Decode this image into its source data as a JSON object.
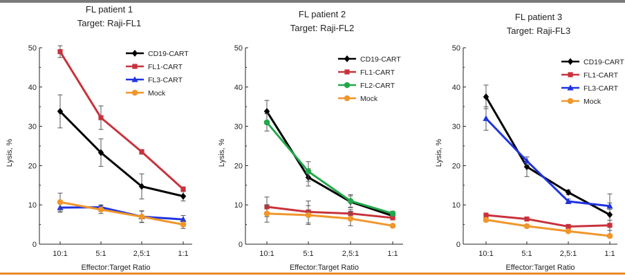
{
  "chart_data": [
    {
      "type": "line",
      "title": "FL patient 1",
      "subtitle": "Target: Raji-FL1",
      "xlabel": "Effector:Target Ratio",
      "ylabel": "Lysis, %",
      "categories": [
        "10:1",
        "5:1",
        "2,5:1",
        "1:1"
      ],
      "ylim": [
        0,
        50
      ],
      "yticks": [
        0,
        10,
        20,
        30,
        40,
        50
      ],
      "legend_position": "top-right",
      "series": [
        {
          "name": "CD19-CART",
          "color": "#000000",
          "marker": "diamond",
          "values": [
            33.8,
            23.3,
            14.7,
            12.2
          ],
          "errors": [
            4.2,
            3.5,
            3.2,
            1.2
          ]
        },
        {
          "name": "FL1-CART",
          "color": "#c8323c",
          "marker": "square",
          "values": [
            49.0,
            32.2,
            23.5,
            14.0
          ],
          "errors": [
            1.5,
            3.0,
            0.6,
            0.6
          ]
        },
        {
          "name": "FL3-CART",
          "color": "#1f33e0",
          "marker": "triangle",
          "values": [
            9.3,
            9.4,
            7.0,
            6.3
          ],
          "errors": [
            1.2,
            0.6,
            1.5,
            1.0
          ]
        },
        {
          "name": "Mock",
          "color": "#f0962a",
          "marker": "circle",
          "values": [
            10.7,
            8.8,
            7.0,
            5.0
          ],
          "errors": [
            2.3,
            1.0,
            1.4,
            1.0
          ]
        }
      ]
    },
    {
      "type": "line",
      "title": "FL patient 2",
      "subtitle": "Target: Raji-FL2",
      "xlabel": "Effector:Target Ratio",
      "ylabel": "Lysis, %",
      "categories": [
        "10:1",
        "5:1",
        "2,5:1",
        "1:1"
      ],
      "ylim": [
        0,
        50
      ],
      "yticks": [
        0,
        10,
        20,
        30,
        40,
        50
      ],
      "legend_position": "top-right",
      "series": [
        {
          "name": "CD19-CART",
          "color": "#000000",
          "marker": "diamond",
          "values": [
            33.8,
            17.0,
            10.8,
            7.2
          ],
          "errors": [
            2.8,
            2.2,
            1.5,
            0.6
          ]
        },
        {
          "name": "FL1-CART",
          "color": "#c8323c",
          "marker": "square",
          "values": [
            9.5,
            8.2,
            7.8,
            6.7
          ],
          "errors": [
            2.5,
            2.8,
            1.0,
            0.5
          ]
        },
        {
          "name": "FL2-CART",
          "color": "#22a84a",
          "marker": "circle",
          "values": [
            31.0,
            18.5,
            11.0,
            7.8
          ],
          "errors": [
            2.2,
            2.5,
            1.6,
            0.6
          ]
        },
        {
          "name": "Mock",
          "color": "#f0962a",
          "marker": "circle",
          "values": [
            7.8,
            7.4,
            6.5,
            4.7
          ],
          "errors": [
            2.2,
            2.4,
            1.8,
            0.4
          ]
        }
      ]
    },
    {
      "type": "line",
      "title": "FL patient 3",
      "subtitle": "Target: Raji-FL3",
      "xlabel": "Effector:Target Ratio",
      "ylabel": "Lysis, %",
      "categories": [
        "10:1",
        "5:1",
        "2,5:1",
        "1:1"
      ],
      "ylim": [
        0,
        50
      ],
      "yticks": [
        0,
        10,
        20,
        30,
        40,
        50
      ],
      "legend_position": "top-right",
      "series": [
        {
          "name": "CD19-CART",
          "color": "#000000",
          "marker": "diamond",
          "values": [
            37.5,
            19.7,
            13.2,
            7.5
          ],
          "errors": [
            3.0,
            2.5,
            0.6,
            5.3
          ]
        },
        {
          "name": "FL1-CART",
          "color": "#c8323c",
          "marker": "square",
          "values": [
            7.4,
            6.4,
            4.5,
            4.8
          ],
          "errors": [
            0.5,
            0.5,
            0.5,
            1.3
          ]
        },
        {
          "name": "FL3-CART",
          "color": "#1f33e0",
          "marker": "triangle",
          "values": [
            32.0,
            21.2,
            10.9,
            9.7
          ],
          "errors": [
            3.0,
            1.0,
            0.6,
            0.8
          ]
        },
        {
          "name": "Mock",
          "color": "#f0962a",
          "marker": "circle",
          "values": [
            6.2,
            4.6,
            3.3,
            2.1
          ],
          "errors": [
            0.5,
            0.4,
            0.4,
            0.4
          ]
        }
      ]
    }
  ]
}
